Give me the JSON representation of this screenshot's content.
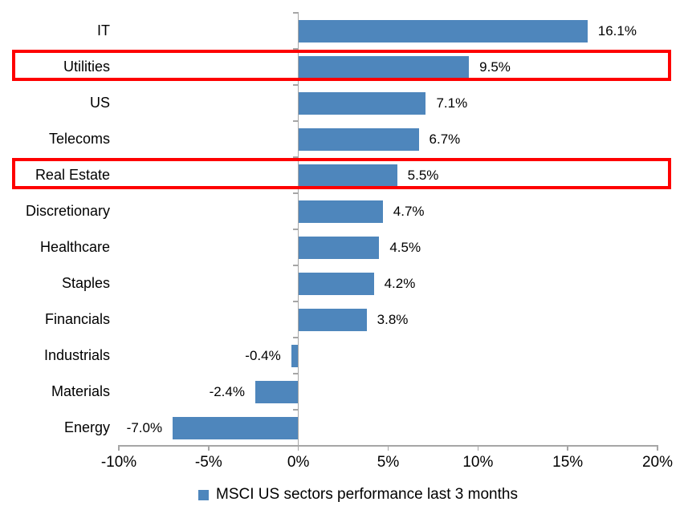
{
  "colors": {
    "bar": "#4e86bc",
    "highlight_box": "#fe0000",
    "axis": "#a6a6a6",
    "text": "#000000"
  },
  "chart_data": {
    "type": "bar",
    "orientation": "horizontal",
    "title": "",
    "xlabel": "",
    "ylabel": "",
    "categories": [
      "IT",
      "Utilities",
      "US",
      "Telecoms",
      "Real Estate",
      "Discretionary",
      "Healthcare",
      "Staples",
      "Financials",
      "Industrials",
      "Materials",
      "Energy"
    ],
    "values": [
      16.1,
      9.5,
      7.1,
      6.7,
      5.5,
      4.7,
      4.5,
      4.2,
      3.8,
      -0.4,
      -2.4,
      -7.0
    ],
    "value_labels": [
      "16.1%",
      "9.5%",
      "7.1%",
      "6.7%",
      "5.5%",
      "4.7%",
      "4.5%",
      "4.2%",
      "3.8%",
      "-0.4%",
      "-2.4%",
      "-7.0%"
    ],
    "highlighted_categories": [
      "Utilities",
      "Real Estate"
    ],
    "xlim": [
      -10,
      20
    ],
    "x_tick_values": [
      -10,
      -5,
      0,
      5,
      10,
      15,
      20
    ],
    "x_tick_labels": [
      "-10%",
      "-5%",
      "0%",
      "5%",
      "10%",
      "15%",
      "20%"
    ],
    "grid": false,
    "legend": "MSCI US sectors performance last 3 months",
    "legend_position": "bottom"
  }
}
